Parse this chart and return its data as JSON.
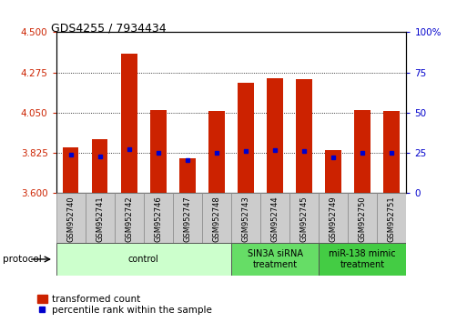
{
  "title": "GDS4255 / 7934434",
  "samples": [
    "GSM952740",
    "GSM952741",
    "GSM952742",
    "GSM952746",
    "GSM952747",
    "GSM952748",
    "GSM952743",
    "GSM952744",
    "GSM952745",
    "GSM952749",
    "GSM952750",
    "GSM952751"
  ],
  "bar_top": [
    3.855,
    3.9,
    4.38,
    4.065,
    3.795,
    4.06,
    4.215,
    4.245,
    4.24,
    3.84,
    4.065,
    4.06
  ],
  "bar_bottom": 3.6,
  "blue_dot_y": [
    3.815,
    3.805,
    3.845,
    3.825,
    3.785,
    3.825,
    3.835,
    3.84,
    3.835,
    3.8,
    3.825,
    3.825
  ],
  "ylim": [
    3.6,
    4.5
  ],
  "yticks_left": [
    3.6,
    3.825,
    4.05,
    4.275,
    4.5
  ],
  "yticks_right_vals": [
    0,
    25,
    50,
    75,
    100
  ],
  "yticks_right_labels": [
    "0",
    "25",
    "50",
    "75",
    "100%"
  ],
  "bar_color": "#cc2200",
  "blue_color": "#0000cc",
  "groups": [
    {
      "label": "control",
      "start": 0,
      "end": 6,
      "color": "#ccffcc"
    },
    {
      "label": "SIN3A siRNA\ntreatment",
      "start": 6,
      "end": 9,
      "color": "#66dd66"
    },
    {
      "label": "miR-138 mimic\ntreatment",
      "start": 9,
      "end": 12,
      "color": "#44cc44"
    }
  ],
  "ylabel_left_color": "#cc2200",
  "ylabel_right_color": "#0000cc",
  "bar_width": 0.55
}
